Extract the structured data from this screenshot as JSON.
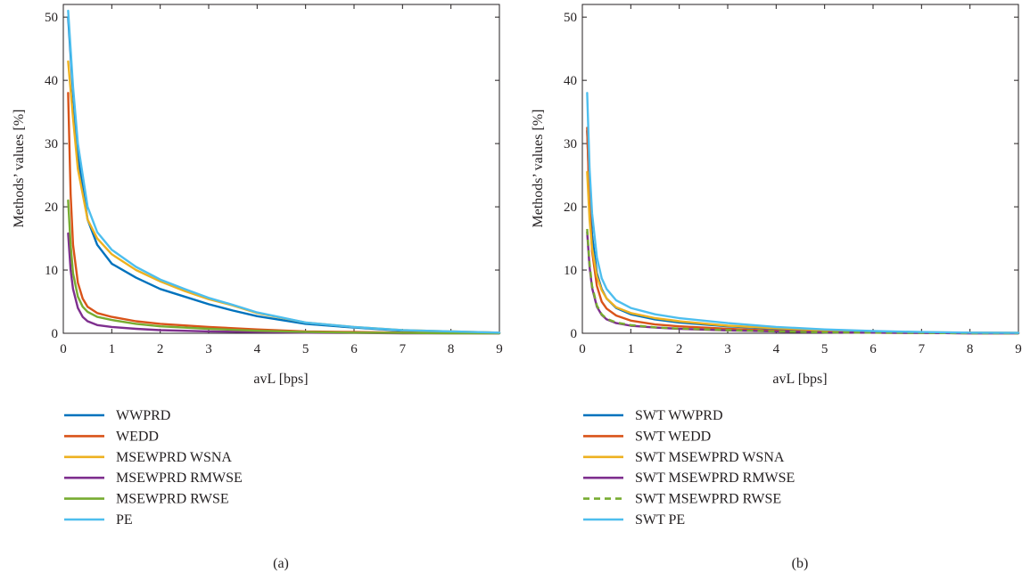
{
  "chart_data": [
    {
      "type": "line",
      "panel_label": "(a)",
      "xlabel": "avL [bps]",
      "ylabel": "Methods’ values [%]",
      "xlim": [
        0,
        9
      ],
      "ylim": [
        0,
        52
      ],
      "xticks": [
        0,
        1,
        2,
        3,
        4,
        5,
        6,
        7,
        8,
        9
      ],
      "yticks": [
        0,
        10,
        20,
        30,
        40,
        50
      ],
      "grid": false,
      "legend_position": "below",
      "series": [
        {
          "name": "WWPRD",
          "color": "#0072bd",
          "dashed": false,
          "x": [
            0.1,
            0.2,
            0.3,
            0.5,
            0.7,
            1,
            1.5,
            2,
            2.5,
            3,
            3.5,
            4,
            5,
            6,
            7,
            8,
            9
          ],
          "y": [
            50,
            38,
            28,
            18,
            14,
            11,
            8.8,
            7,
            5.8,
            4.6,
            3.6,
            2.7,
            1.5,
            0.9,
            0.4,
            0.2,
            0.1
          ]
        },
        {
          "name": "WEDD",
          "color": "#d95319",
          "dashed": false,
          "x": [
            0.1,
            0.15,
            0.2,
            0.3,
            0.4,
            0.5,
            0.7,
            1,
            1.5,
            2,
            3,
            4,
            5,
            6,
            7,
            8,
            9
          ],
          "y": [
            38,
            22,
            14,
            8,
            5.5,
            4.2,
            3.2,
            2.6,
            1.9,
            1.5,
            1,
            0.6,
            0.3,
            0.2,
            0.1,
            0.05,
            0
          ]
        },
        {
          "name": "MSEWPRD WSNA",
          "color": "#edb120",
          "dashed": false,
          "x": [
            0.1,
            0.2,
            0.3,
            0.5,
            0.7,
            1,
            1.5,
            2,
            2.5,
            3,
            3.5,
            4,
            5,
            6,
            7,
            8,
            9
          ],
          "y": [
            43,
            34,
            26,
            18,
            15,
            12.5,
            10,
            8.2,
            6.7,
            5.4,
            4.4,
            3.2,
            1.7,
            1,
            0.5,
            0.3,
            0.1
          ]
        },
        {
          "name": "MSEWPRD RMWSE",
          "color": "#7e2f8e",
          "dashed": false,
          "x": [
            0.1,
            0.15,
            0.2,
            0.3,
            0.4,
            0.5,
            0.7,
            1,
            1.5,
            2,
            3,
            4,
            5,
            6,
            7,
            8,
            9
          ],
          "y": [
            15.8,
            10,
            7,
            4,
            2.6,
            1.9,
            1.3,
            1,
            0.7,
            0.5,
            0.3,
            0.2,
            0.1,
            0.05,
            0,
            0,
            0
          ]
        },
        {
          "name": "MSEWPRD RWSE",
          "color": "#77ac30",
          "dashed": false,
          "x": [
            0.1,
            0.15,
            0.2,
            0.3,
            0.4,
            0.5,
            0.7,
            1,
            1.5,
            2,
            3,
            4,
            5,
            6,
            7,
            8,
            9
          ],
          "y": [
            21,
            14,
            9.5,
            5.8,
            4.2,
            3.4,
            2.6,
            2.1,
            1.5,
            1.1,
            0.7,
            0.4,
            0.2,
            0.1,
            0.05,
            0,
            0
          ]
        },
        {
          "name": "PE",
          "color": "#4dbeee",
          "dashed": false,
          "x": [
            0.1,
            0.2,
            0.3,
            0.5,
            0.7,
            1,
            1.5,
            2,
            2.5,
            3,
            3.5,
            4,
            5,
            6,
            7,
            8,
            9
          ],
          "y": [
            51,
            39,
            30,
            20,
            16,
            13.2,
            10.5,
            8.5,
            7,
            5.6,
            4.5,
            3.3,
            1.7,
            1,
            0.5,
            0.3,
            0.1
          ]
        }
      ]
    },
    {
      "type": "line",
      "panel_label": "(b)",
      "xlabel": "avL [bps]",
      "ylabel": "Methods’ values [%]",
      "xlim": [
        0,
        9
      ],
      "ylim": [
        0,
        52
      ],
      "xticks": [
        0,
        1,
        2,
        3,
        4,
        5,
        6,
        7,
        8,
        9
      ],
      "yticks": [
        0,
        10,
        20,
        30,
        40,
        50
      ],
      "grid": false,
      "legend_position": "below",
      "series": [
        {
          "name": "SWT WWPRD",
          "color": "#0072bd",
          "dashed": false,
          "x": [
            0.1,
            0.15,
            0.2,
            0.3,
            0.4,
            0.5,
            0.7,
            1,
            1.5,
            2,
            3,
            4,
            5,
            6,
            7,
            8,
            9
          ],
          "y": [
            32,
            22,
            15.5,
            9.5,
            7,
            5.5,
            4,
            3,
            2.2,
            1.7,
            1.1,
            0.7,
            0.4,
            0.3,
            0.1,
            0.1,
            0.05
          ]
        },
        {
          "name": "SWT WEDD",
          "color": "#d95319",
          "dashed": false,
          "x": [
            0.1,
            0.15,
            0.2,
            0.3,
            0.4,
            0.5,
            0.7,
            1,
            1.5,
            2,
            3,
            4,
            5,
            6,
            7,
            8,
            9
          ],
          "y": [
            32.5,
            20,
            13,
            7.5,
            5,
            3.9,
            2.8,
            2,
            1.4,
            1.1,
            0.7,
            0.4,
            0.2,
            0.1,
            0.05,
            0,
            0
          ]
        },
        {
          "name": "SWT MSEWPRD WSNA",
          "color": "#edb120",
          "dashed": false,
          "x": [
            0.1,
            0.15,
            0.2,
            0.3,
            0.4,
            0.5,
            0.7,
            1,
            1.5,
            2,
            3,
            4,
            5,
            6,
            7,
            8,
            9
          ],
          "y": [
            25.5,
            18,
            13.5,
            9,
            6.8,
            5.5,
            4.1,
            3.2,
            2.4,
            1.9,
            1.2,
            0.8,
            0.5,
            0.3,
            0.15,
            0.1,
            0.05
          ]
        },
        {
          "name": "SWT MSEWPRD RMWSE",
          "color": "#7e2f8e",
          "dashed": false,
          "x": [
            0.1,
            0.15,
            0.2,
            0.3,
            0.4,
            0.5,
            0.7,
            1,
            1.5,
            2,
            3,
            4,
            5,
            6,
            7,
            8,
            9
          ],
          "y": [
            16,
            10.5,
            7.2,
            4.2,
            2.9,
            2.2,
            1.6,
            1.2,
            0.9,
            0.7,
            0.45,
            0.3,
            0.15,
            0.1,
            0.05,
            0,
            0
          ]
        },
        {
          "name": "SWT MSEWPRD RWSE",
          "color": "#77ac30",
          "dashed": true,
          "x": [
            0.1,
            0.15,
            0.2,
            0.3,
            0.4,
            0.5,
            0.7,
            1,
            1.5,
            2,
            3,
            4,
            5,
            6,
            7,
            8,
            9
          ],
          "y": [
            16.5,
            11,
            7.5,
            4.4,
            3,
            2.3,
            1.7,
            1.3,
            0.95,
            0.75,
            0.5,
            0.3,
            0.15,
            0.1,
            0.05,
            0,
            0
          ]
        },
        {
          "name": "SWT PE",
          "color": "#4dbeee",
          "dashed": false,
          "x": [
            0.1,
            0.15,
            0.2,
            0.3,
            0.4,
            0.5,
            0.7,
            1,
            1.5,
            2,
            3,
            4,
            5,
            6,
            7,
            8,
            9
          ],
          "y": [
            38,
            26,
            19,
            12,
            8.7,
            7,
            5.2,
            4,
            3,
            2.4,
            1.6,
            1,
            0.6,
            0.35,
            0.2,
            0.1,
            0.05
          ]
        }
      ]
    }
  ]
}
